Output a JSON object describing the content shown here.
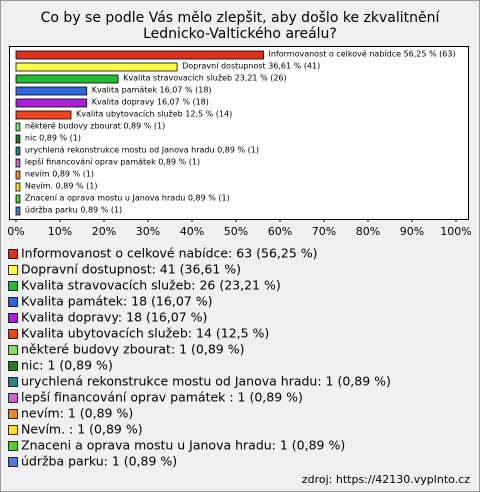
{
  "chart_data": {
    "type": "bar",
    "orientation": "horizontal",
    "title": [
      "Co by se podle Vás mělo zlepšit, aby došlo ke zkvalitnění",
      "Lednicko-Valtického areálu?"
    ],
    "categories": [
      "Informovanost o celkové nabídce",
      "Dopravní dostupnost",
      "Kvalita stravovacích služeb",
      "Kvalita památek",
      "Kvalita dopravy",
      "Kvalita ubytovacích služeb",
      "některé budovy zbourat",
      "nic",
      "urychlená rekonstrukce mostu od Janova hradu",
      "lepší financování oprav památek ",
      "nevím",
      "Nevím. ",
      "Znaceni a oprava mostu u Janova hradu",
      "údržba parku"
    ],
    "values": [
      56.25,
      36.61,
      23.21,
      16.07,
      16.07,
      12.5,
      0.89,
      0.89,
      0.89,
      0.89,
      0.89,
      0.89,
      0.89,
      0.89
    ],
    "value_labels": [
      "Informovanost o celkové nabídce 56,25 % (63)",
      "Dopravní dostupnost 36,61 % (41)",
      "Kvalita stravovacích služeb 23,21 % (26)",
      "Kvalita památek 16,07 % (18)",
      "Kvalita dopravy 16,07 % (18)",
      "Kvalita ubytovacích služeb 12,5 % (14)",
      "některé budovy zbourat 0,89 % (1)",
      "nic 0,89 % (1)",
      "urychlená rekonstrukce mostu od Janova hradu 0,89 % (1)",
      "lepší financování oprav památek  0,89 % (1)",
      "nevím 0,89 % (1)",
      "Nevím.  0,89 % (1)",
      "Znacení a oprava mostu u Janova hradu 0,89 % (1)",
      "údržba parku 0,89 % (1)"
    ],
    "legend_labels": [
      "Informovanost o celkové nabídce: 63 (56,25 %)",
      "Dopravní dostupnost: 41 (36,61 %)",
      "Kvalita stravovacích služeb: 26 (23,21 %)",
      "Kvalita památek: 18 (16,07 %)",
      "Kvalita dopravy: 18 (16,07 %)",
      "Kvalita ubytovacích služeb: 14 (12,5 %)",
      "některé budovy zbourat: 1 (0,89 %)",
      "nic: 1 (0,89 %)",
      "urychlená rekonstrukce mostu od Janova hradu: 1 (0,89 %)",
      "lepší financování oprav památek : 1 (0,89 %)",
      "nevím: 1 (0,89 %)",
      "Nevím. : 1 (0,89 %)",
      "Znaceni a oprava mostu u Janova hradu: 1 (0,89 %)",
      "údržba parku: 1 (0,89 %)"
    ],
    "colors": [
      "#e0301e",
      "#ffff44",
      "#22bb33",
      "#3366dd",
      "#aa22dd",
      "#ee4422",
      "#88dd66",
      "#2a7a2a",
      "#2e7f8f",
      "#cc66cc",
      "#ee8833",
      "#ffdd22",
      "#55cc33",
      "#5577dd"
    ],
    "xlim": [
      0,
      100
    ],
    "xticks": [
      {
        "value": 0,
        "label": "0%"
      },
      {
        "value": 10,
        "label": "10%"
      },
      {
        "value": 20,
        "label": "20%"
      },
      {
        "value": 30,
        "label": "30%"
      },
      {
        "value": 40,
        "label": "40%"
      },
      {
        "value": 50,
        "label": "50%"
      },
      {
        "value": 60,
        "label": "60%"
      },
      {
        "value": 70,
        "label": "70%"
      },
      {
        "value": 80,
        "label": "80%"
      },
      {
        "value": 90,
        "label": "90%"
      },
      {
        "value": 100,
        "label": "100%"
      }
    ],
    "source": "zdroj: https://42130.vyplnto.cz"
  }
}
